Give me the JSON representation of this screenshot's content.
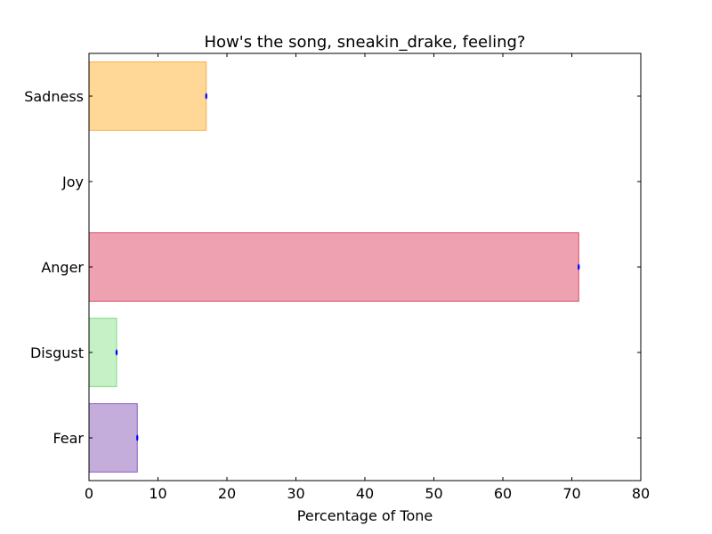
{
  "chart_data": {
    "type": "bar",
    "orientation": "horizontal",
    "title": "How's the song, sneakin_drake, feeling?",
    "xlabel": "Percentage of Tone",
    "ylabel": "",
    "xlim": [
      0,
      80
    ],
    "xticks": [
      0,
      10,
      20,
      30,
      40,
      50,
      60,
      70,
      80
    ],
    "grid": false,
    "categories": [
      "Fear",
      "Disgust",
      "Anger",
      "Joy",
      "Sadness"
    ],
    "values": [
      7,
      4,
      71,
      0,
      17
    ],
    "colors": [
      "#9467bd",
      "#98e698",
      "#e05470",
      "#f4c542",
      "#ffb640"
    ],
    "edge_colors": [
      "#8a5cc0",
      "#7fd87f",
      "#d84a63",
      "#e0b030",
      "#f2b04a"
    ],
    "error_marker_color": "#0000ff"
  }
}
